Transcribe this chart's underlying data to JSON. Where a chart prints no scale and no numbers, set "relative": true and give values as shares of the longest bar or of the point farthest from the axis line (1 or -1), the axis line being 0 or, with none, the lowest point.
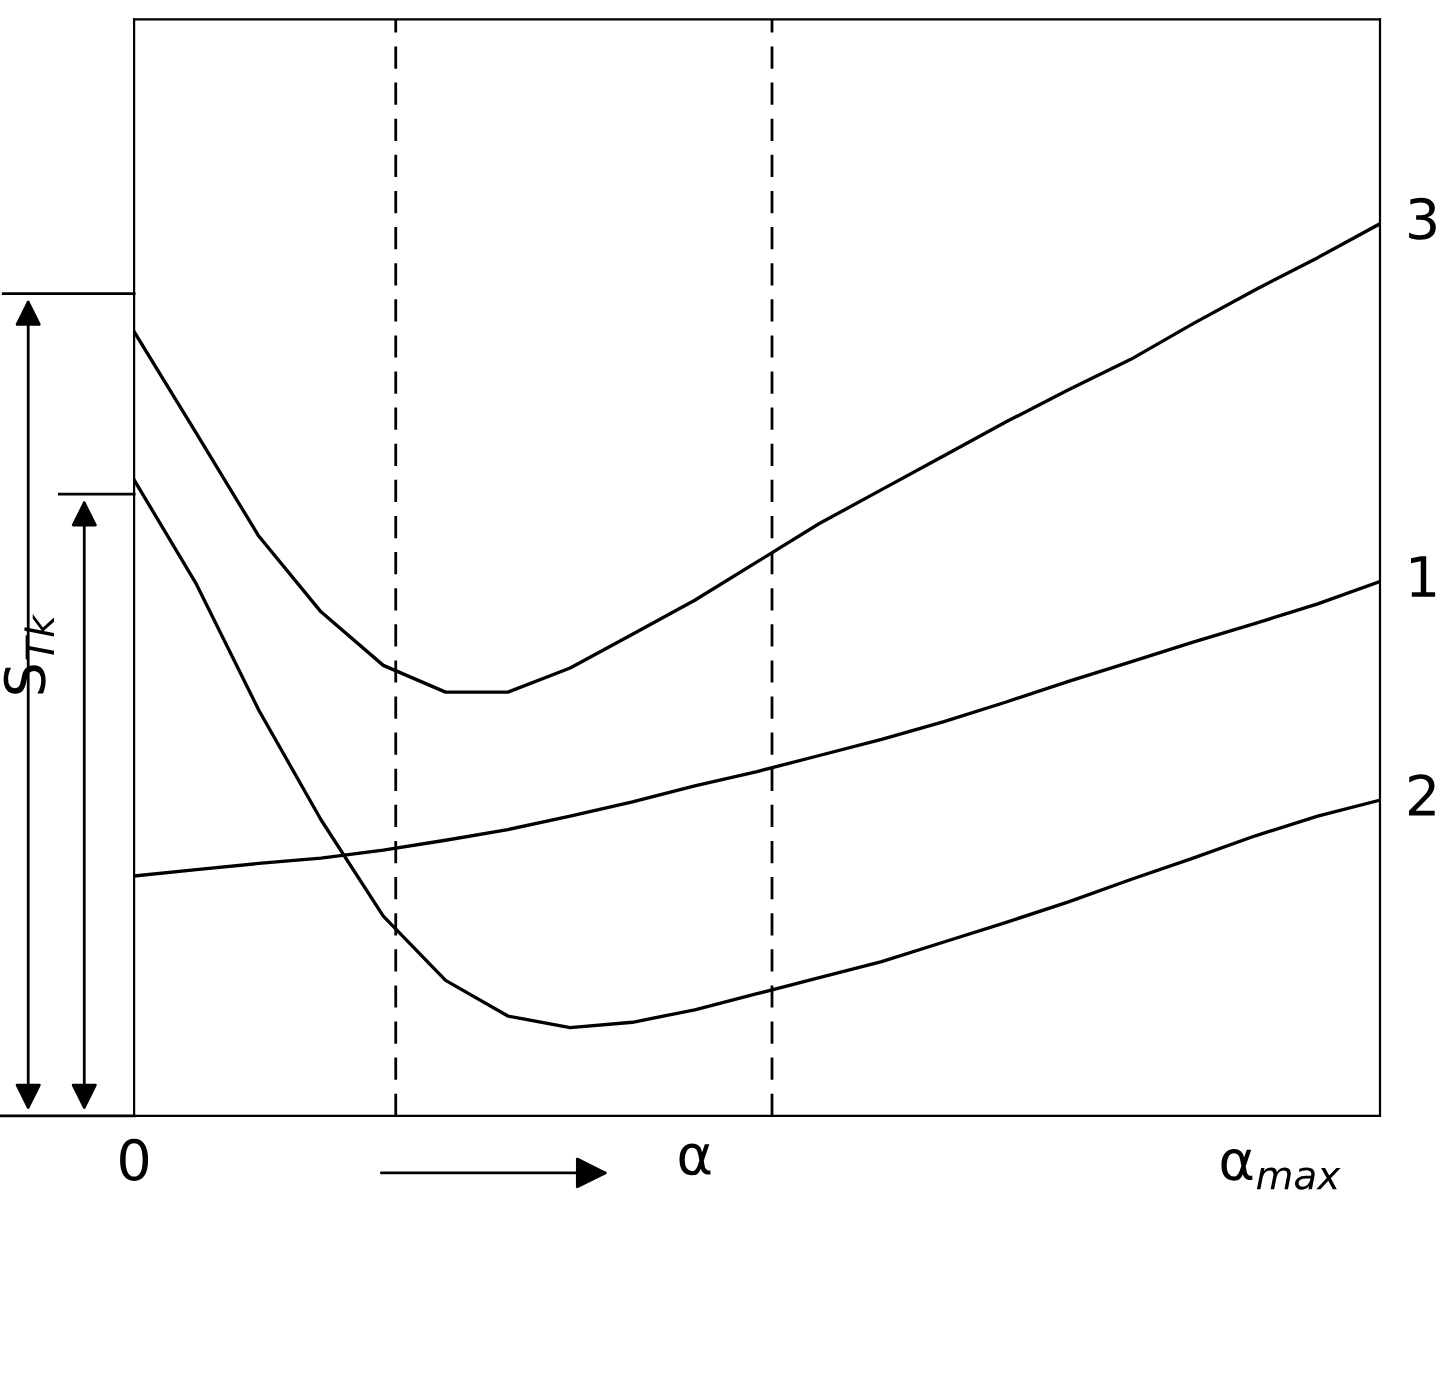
{
  "chart_data": {
    "type": "line",
    "relative": true,
    "xlabel": "α",
    "ylabel": "S$_{Tk}$",
    "categories": [
      null,
      null,
      null,
      null,
      null,
      null,
      null,
      null,
      null,
      null,
      null,
      null,
      null,
      null,
      null,
      null,
      null,
      null,
      null,
      null,
      null
    ],
    "annotations": [
      "0",
      "α$_{max}$"
    ],
    "grid": false,
    "legend": false,
    "marker": "none",
    "line_style": "solid",
    "series": [
      {
        "name": "3",
        "color": "#000000",
        "values": [
          0.879,
          0.765,
          0.65,
          0.565,
          0.505,
          0.475,
          0.475,
          0.502,
          0.54,
          0.578,
          0.621,
          0.664,
          0.702,
          0.74,
          0.778,
          0.814,
          0.848,
          0.888,
          0.926,
          0.962,
          1.0
        ]
      },
      {
        "name": "1",
        "color": "#000000",
        "values": [
          0.269,
          0.276,
          0.283,
          0.289,
          0.298,
          0.309,
          0.321,
          0.336,
          0.352,
          0.37,
          0.386,
          0.404,
          0.422,
          0.442,
          0.464,
          0.487,
          0.509,
          0.531,
          0.552,
          0.574,
          0.599
        ]
      },
      {
        "name": "2",
        "color": "#000000",
        "values": [
          0.713,
          0.596,
          0.455,
          0.332,
          0.224,
          0.152,
          0.112,
          0.099,
          0.105,
          0.119,
          0.137,
          0.155,
          0.173,
          0.195,
          0.217,
          0.24,
          0.265,
          0.289,
          0.314,
          0.336,
          0.354
        ]
      }
    ]
  }
}
